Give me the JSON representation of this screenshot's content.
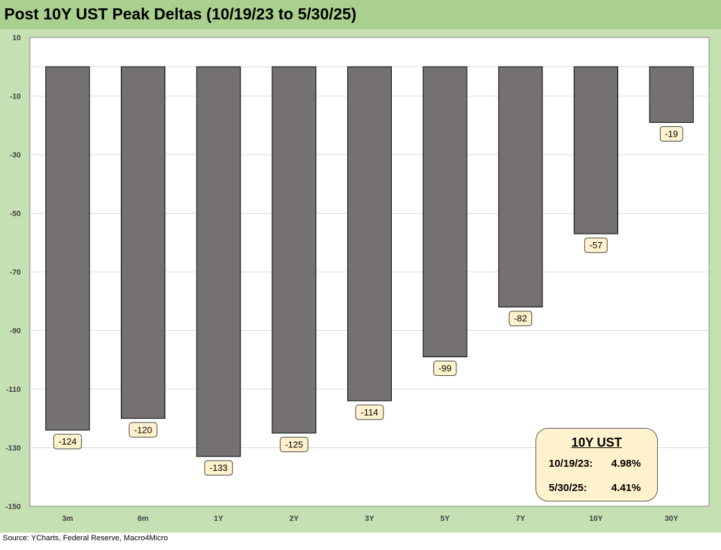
{
  "title": "Post 10Y UST Peak Deltas (10/19/23 to 5/30/25)",
  "source": "Source: YCharts, Federal Reserve, Macro4Micro",
  "colors": {
    "bar": "#757171",
    "frame": "#c5e0b3",
    "title_bar": "#a9d08e",
    "label_fill": "#fff2cc"
  },
  "callout": {
    "title": "10Y UST",
    "rows": [
      {
        "date": "10/19/23:",
        "value": "4.98%"
      },
      {
        "date": "5/30/25:",
        "value": "4.41%"
      }
    ]
  },
  "chart_data": {
    "type": "bar",
    "categories": [
      "3m",
      "6m",
      "1Y",
      "2Y",
      "3Y",
      "5Y",
      "7Y",
      "10Y",
      "30Y"
    ],
    "values": [
      -124,
      -120,
      -133,
      -125,
      -114,
      -99,
      -82,
      -57,
      -19
    ],
    "ylim": [
      -150,
      10
    ],
    "yticks": [
      10,
      -10,
      -30,
      -50,
      -70,
      -90,
      -110,
      -130,
      -150
    ],
    "grid": true,
    "legend": "none",
    "xlabel": "",
    "ylabel": ""
  }
}
